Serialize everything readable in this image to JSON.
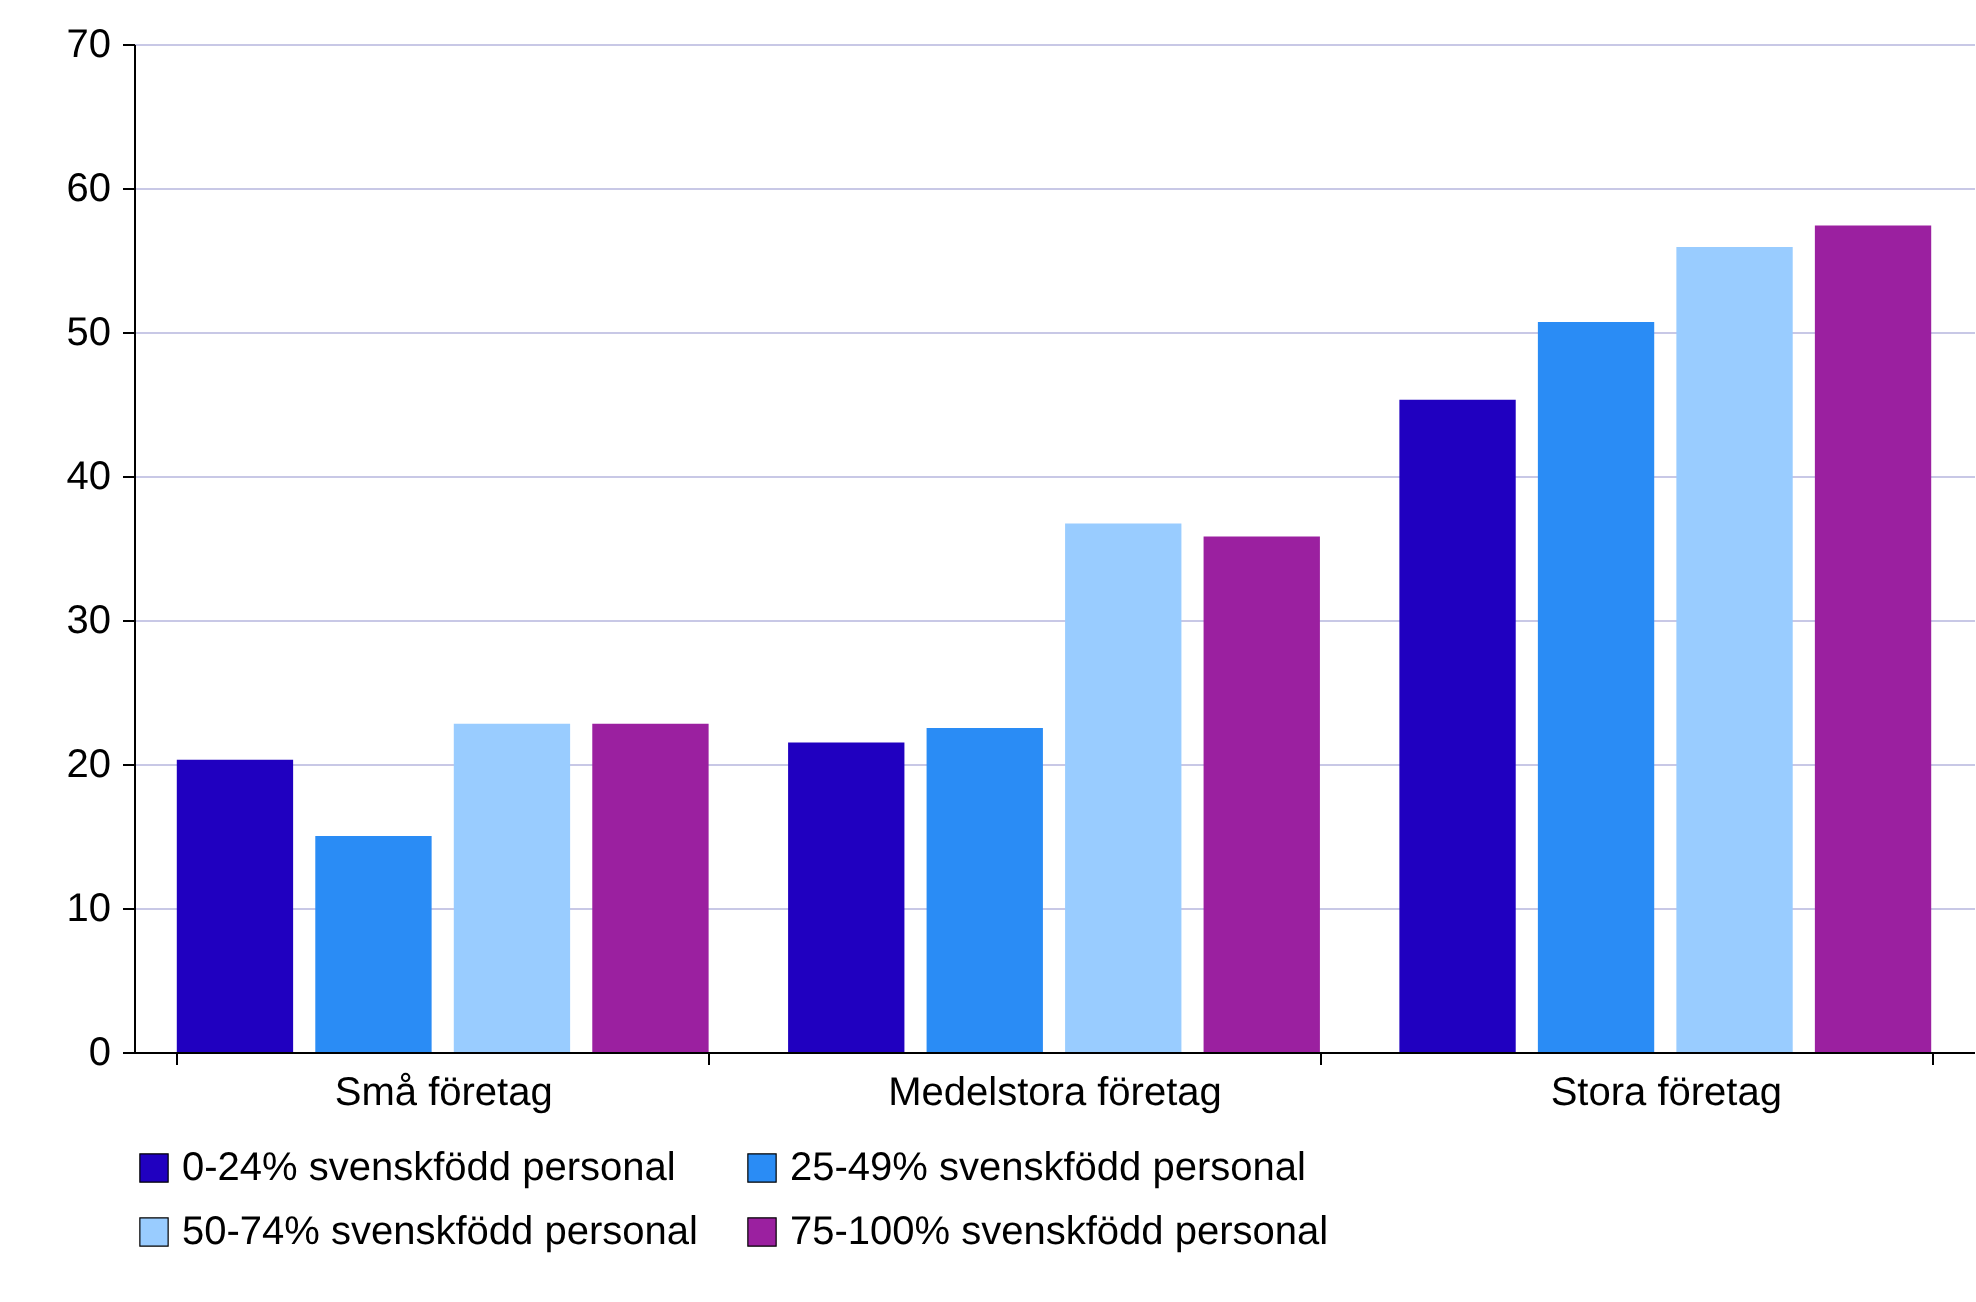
{
  "chart_data": {
    "type": "bar",
    "categories": [
      "Små företag",
      "Medelstora företag",
      "Stora företag"
    ],
    "series": [
      {
        "name": "0-24% svenskfödd personal",
        "color": "#2000c0",
        "values": [
          20.3,
          21.5,
          45.3
        ]
      },
      {
        "name": "25-49% svenskfödd personal",
        "color": "#2a8cf5",
        "values": [
          15.0,
          22.5,
          50.7
        ]
      },
      {
        "name": "50-74% svenskfödd personal",
        "color": "#99ccff",
        "values": [
          22.8,
          36.7,
          55.9
        ]
      },
      {
        "name": "75-100% svenskfödd personal",
        "color": "#9b20a0",
        "values": [
          22.8,
          35.8,
          57.4
        ]
      }
    ],
    "ylim": [
      0,
      70
    ],
    "yticks": [
      0,
      10,
      20,
      30,
      40,
      50,
      60,
      70
    ],
    "grid": "y",
    "legend": "bottom"
  }
}
